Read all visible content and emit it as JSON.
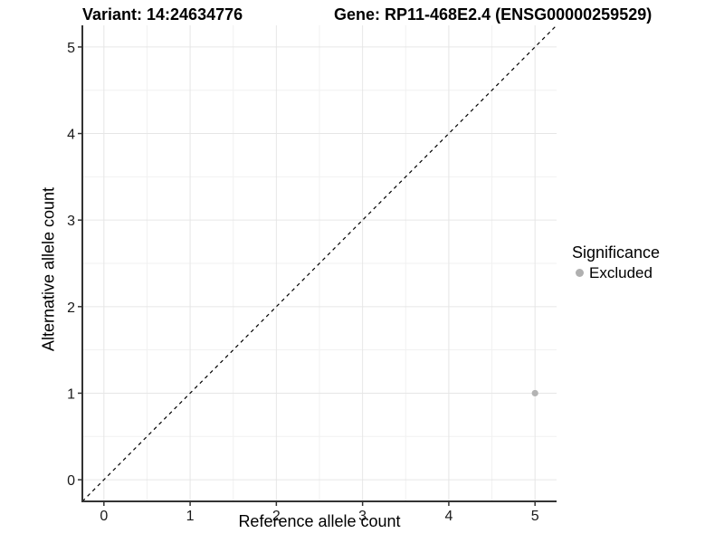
{
  "chart_data": {
    "type": "scatter",
    "title_left": "Variant: 14:24634776",
    "title_right": "Gene: RP11-468E2.4 (ENSG00000259529)",
    "xlabel": "Reference allele count",
    "ylabel": "Alternative allele count",
    "xlim": [
      -0.25,
      5.25
    ],
    "ylim": [
      -0.25,
      5.25
    ],
    "x_ticks": [
      0,
      1,
      2,
      3,
      4,
      5
    ],
    "y_ticks": [
      0,
      1,
      2,
      3,
      4,
      5
    ],
    "grid": "major at integers, minor at 0.5 steps",
    "minor_step": 0.5,
    "series": [
      {
        "name": "Excluded",
        "color": "#b3b3b3",
        "points": [
          {
            "x": 5,
            "y": 1
          }
        ]
      }
    ],
    "reference_line": {
      "type": "identity",
      "slope": 1,
      "intercept": 0,
      "style": "dashed",
      "color": "#000000"
    },
    "legend": {
      "position": "right",
      "title": "Significance",
      "entries": [
        {
          "label": "Excluded",
          "marker": "circle",
          "color": "#b0b0b0"
        }
      ]
    },
    "colors": {
      "background": "#ffffff",
      "grid_major": "#e6e6e6",
      "grid_minor": "#f1f1f1",
      "axis": "#333333",
      "tick_text": "#1a1a1a"
    }
  }
}
